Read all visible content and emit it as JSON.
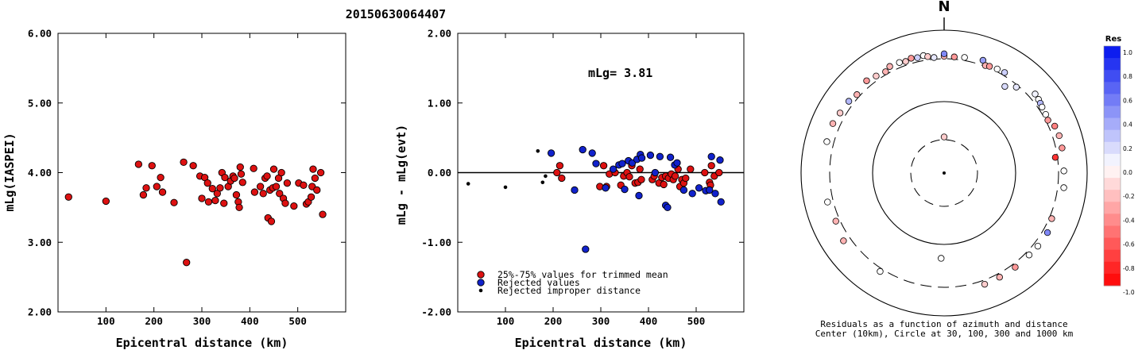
{
  "header": {
    "event_id": "20150630064407"
  },
  "compass": {
    "north_label": "N"
  },
  "chart_data": [
    {
      "type": "scatter",
      "name": "magnitude-vs-distance",
      "xlabel": "Epicentral distance (km)",
      "ylabel": "mLg(IASPEI)",
      "xlim": [
        0,
        600
      ],
      "ylim": [
        2.0,
        6.0
      ],
      "x_ticks": [
        100,
        200,
        300,
        400,
        500
      ],
      "x_tick_labels": [
        "100",
        "200",
        "300",
        "400",
        "500"
      ],
      "y_ticks": [
        2.0,
        3.0,
        4.0,
        5.0,
        6.0
      ],
      "y_tick_labels": [
        "2.00",
        "3.00",
        "4.00",
        "5.00",
        "6.00"
      ],
      "point_color": "#dd1111",
      "points": [
        [
          22,
          3.65
        ],
        [
          100,
          3.59
        ],
        [
          168,
          4.12
        ],
        [
          178,
          3.68
        ],
        [
          184,
          3.78
        ],
        [
          196,
          4.1
        ],
        [
          206,
          3.8
        ],
        [
          214,
          3.93
        ],
        [
          218,
          3.72
        ],
        [
          242,
          3.57
        ],
        [
          262,
          4.15
        ],
        [
          268,
          2.71
        ],
        [
          282,
          4.1
        ],
        [
          296,
          3.95
        ],
        [
          300,
          3.63
        ],
        [
          306,
          3.93
        ],
        [
          312,
          3.85
        ],
        [
          314,
          3.58
        ],
        [
          322,
          3.77
        ],
        [
          328,
          3.6
        ],
        [
          332,
          3.7
        ],
        [
          338,
          3.78
        ],
        [
          342,
          4.0
        ],
        [
          346,
          3.56
        ],
        [
          348,
          3.93
        ],
        [
          355,
          3.8
        ],
        [
          360,
          3.88
        ],
        [
          365,
          3.95
        ],
        [
          368,
          3.92
        ],
        [
          372,
          3.68
        ],
        [
          376,
          3.58
        ],
        [
          378,
          3.5
        ],
        [
          380,
          4.08
        ],
        [
          382,
          3.98
        ],
        [
          385,
          3.86
        ],
        [
          408,
          4.06
        ],
        [
          410,
          3.72
        ],
        [
          422,
          3.8
        ],
        [
          428,
          3.7
        ],
        [
          432,
          3.92
        ],
        [
          436,
          3.95
        ],
        [
          438,
          3.35
        ],
        [
          442,
          3.75
        ],
        [
          445,
          3.3
        ],
        [
          448,
          3.78
        ],
        [
          450,
          4.05
        ],
        [
          455,
          3.8
        ],
        [
          460,
          3.92
        ],
        [
          462,
          3.7
        ],
        [
          466,
          4.0
        ],
        [
          470,
          3.63
        ],
        [
          474,
          3.56
        ],
        [
          478,
          3.85
        ],
        [
          492,
          3.52
        ],
        [
          502,
          3.85
        ],
        [
          512,
          3.82
        ],
        [
          518,
          3.55
        ],
        [
          522,
          3.58
        ],
        [
          528,
          3.65
        ],
        [
          530,
          3.8
        ],
        [
          532,
          4.05
        ],
        [
          536,
          3.92
        ],
        [
          540,
          3.75
        ],
        [
          548,
          4.0
        ],
        [
          552,
          3.4
        ]
      ]
    },
    {
      "type": "scatter",
      "name": "residual-vs-distance",
      "xlabel": "Epicentral distance (km)",
      "ylabel": "mLg - mLg(evt)",
      "xlim": [
        0,
        600
      ],
      "ylim": [
        -2.0,
        2.0
      ],
      "x_ticks": [
        100,
        200,
        300,
        400,
        500
      ],
      "x_tick_labels": [
        "100",
        "200",
        "300",
        "400",
        "500"
      ],
      "y_ticks": [
        -2.0,
        -1.0,
        0.0,
        1.0,
        2.0
      ],
      "y_tick_labels": [
        "-2.00",
        "-1.00",
        "0.00",
        "1.00",
        "2.00"
      ],
      "annotation": "mLg= 3.81",
      "zero_line": 0.0,
      "legend": [
        {
          "label": "25%-75% values for trimmed mean",
          "color": "#dd1111",
          "marker": "circle"
        },
        {
          "label": "Rejected values",
          "color": "#1122cc",
          "marker": "circle"
        },
        {
          "label": "Rejected improper distance",
          "color": "#000000",
          "marker": "dot"
        }
      ],
      "series": [
        {
          "name": "25%-75% values for trimmed mean",
          "color": "#dd1111",
          "points": [
            [
              208,
              0.0
            ],
            [
              214,
              0.1
            ],
            [
              218,
              -0.08
            ],
            [
              298,
              -0.2
            ],
            [
              306,
              0.1
            ],
            [
              312,
              -0.2
            ],
            [
              318,
              -0.02
            ],
            [
              330,
              0.0
            ],
            [
              342,
              -0.18
            ],
            [
              348,
              -0.05
            ],
            [
              355,
              0.0
            ],
            [
              360,
              -0.06
            ],
            [
              365,
              0.1
            ],
            [
              372,
              -0.15
            ],
            [
              378,
              -0.14
            ],
            [
              382,
              0.05
            ],
            [
              385,
              -0.1
            ],
            [
              408,
              -0.1
            ],
            [
              412,
              -0.05
            ],
            [
              422,
              -0.15
            ],
            [
              428,
              -0.07
            ],
            [
              432,
              -0.17
            ],
            [
              436,
              -0.05
            ],
            [
              442,
              -0.08
            ],
            [
              448,
              -0.02
            ],
            [
              452,
              -0.1
            ],
            [
              456,
              -0.05
            ],
            [
              462,
              0.05
            ],
            [
              466,
              -0.2
            ],
            [
              470,
              -0.1
            ],
            [
              474,
              -0.15
            ],
            [
              478,
              -0.08
            ],
            [
              488,
              0.05
            ],
            [
              518,
              0.0
            ],
            [
              528,
              -0.14
            ],
            [
              530,
              -0.18
            ],
            [
              532,
              0.1
            ],
            [
              538,
              -0.05
            ],
            [
              548,
              0.0
            ]
          ]
        },
        {
          "name": "Rejected values",
          "color": "#1122cc",
          "points": [
            [
              196,
              0.28
            ],
            [
              245,
              -0.25
            ],
            [
              262,
              0.33
            ],
            [
              268,
              -1.1
            ],
            [
              282,
              0.28
            ],
            [
              290,
              0.13
            ],
            [
              310,
              -0.22
            ],
            [
              326,
              0.05
            ],
            [
              338,
              0.11
            ],
            [
              345,
              0.13
            ],
            [
              350,
              -0.24
            ],
            [
              358,
              0.17
            ],
            [
              366,
              0.14
            ],
            [
              376,
              0.19
            ],
            [
              380,
              -0.33
            ],
            [
              383,
              0.26
            ],
            [
              386,
              0.21
            ],
            [
              404,
              0.25
            ],
            [
              414,
              0.0
            ],
            [
              424,
              0.23
            ],
            [
              436,
              -0.47
            ],
            [
              440,
              -0.5
            ],
            [
              446,
              0.22
            ],
            [
              455,
              0.11
            ],
            [
              460,
              0.14
            ],
            [
              474,
              -0.25
            ],
            [
              492,
              -0.3
            ],
            [
              506,
              -0.22
            ],
            [
              520,
              -0.26
            ],
            [
              528,
              -0.25
            ],
            [
              532,
              0.23
            ],
            [
              540,
              -0.3
            ],
            [
              550,
              0.18
            ],
            [
              552,
              -0.42
            ]
          ]
        },
        {
          "name": "Rejected improper distance",
          "color": "#000000",
          "points": [
            [
              22,
              -0.16
            ],
            [
              100,
              -0.21
            ],
            [
              168,
              0.31
            ],
            [
              178,
              -0.14
            ],
            [
              184,
              -0.05
            ]
          ]
        }
      ]
    },
    {
      "type": "polar-scatter",
      "name": "residual-azimuth-distance",
      "caption_line1": "Residuals as a function of azimuth and distance",
      "caption_line2": "Center (10km), Circle at 30, 100, 300 and 1000 km",
      "rings_km": [
        30,
        100,
        300,
        1000
      ],
      "colorbar": {
        "title": "Res",
        "range": [
          -1.0,
          1.0
        ],
        "tick_values": [
          1.0,
          0.8,
          0.6,
          0.4,
          0.2,
          0.0,
          -0.2,
          -0.4,
          -0.6,
          -0.8,
          -1.0
        ],
        "tick_labels": [
          "1.0",
          "0.8",
          "0.6",
          "0.4",
          "0.2",
          "0.0",
          "-0.2",
          "-0.4",
          "-0.6",
          "-0.8",
          "-1.0"
        ],
        "positive_color": "#0011ee",
        "negative_color": "#ff0000",
        "zero_color": "#ffffff"
      },
      "stations": [
        {
          "az": 0,
          "dist": 35,
          "res": -0.2
        },
        {
          "az": 0,
          "dist": 360,
          "res": -0.3
        },
        {
          "az": 0,
          "dist": 420,
          "res": 0.5
        },
        {
          "az": 5,
          "dist": 355,
          "res": -0.4
        },
        {
          "az": 10,
          "dist": 375,
          "res": 0.0
        },
        {
          "az": 19,
          "dist": 420,
          "res": 0.4
        },
        {
          "az": 21,
          "dist": 320,
          "res": -0.3
        },
        {
          "az": 23,
          "dist": 340,
          "res": -0.4
        },
        {
          "az": 27,
          "dist": 360,
          "res": 0.0
        },
        {
          "az": 31,
          "dist": 372,
          "res": 0.2
        },
        {
          "az": 35,
          "dist": 260,
          "res": 0.15
        },
        {
          "az": 40,
          "dist": 290,
          "res": 0.1
        },
        {
          "az": 49,
          "dist": 450,
          "res": 0.05
        },
        {
          "az": 52,
          "dist": 430,
          "res": 0.0
        },
        {
          "az": 54,
          "dist": 410,
          "res": 0.3
        },
        {
          "az": 56,
          "dist": 390,
          "res": 0.0
        },
        {
          "az": 60,
          "dist": 370,
          "res": 0.0
        },
        {
          "az": 63,
          "dist": 350,
          "res": -0.4
        },
        {
          "az": 67,
          "dist": 440,
          "res": -0.5
        },
        {
          "az": 72,
          "dist": 460,
          "res": -0.3
        },
        {
          "az": 78,
          "dist": 450,
          "res": -0.4
        },
        {
          "az": 82,
          "dist": 290,
          "res": -0.8
        },
        {
          "az": 89,
          "dist": 430,
          "res": 0.0
        },
        {
          "az": 97,
          "dist": 450,
          "res": 0.0
        },
        {
          "az": 113,
          "dist": 360,
          "res": -0.3
        },
        {
          "az": 120,
          "dist": 420,
          "res": 0.5
        },
        {
          "az": 128,
          "dist": 410,
          "res": 0.0
        },
        {
          "az": 134,
          "dist": 390,
          "res": 0.0
        },
        {
          "az": 143,
          "dist": 390,
          "res": -0.4
        },
        {
          "az": 152,
          "dist": 390,
          "res": -0.3
        },
        {
          "az": 160,
          "dist": 400,
          "res": -0.2
        },
        {
          "az": 182,
          "dist": 165,
          "res": 0.0
        },
        {
          "az": 213,
          "dist": 375,
          "res": 0.0
        },
        {
          "az": 236,
          "dist": 470,
          "res": -0.3
        },
        {
          "az": 246,
          "dist": 400,
          "res": -0.3
        },
        {
          "az": 256,
          "dist": 440,
          "res": 0.0
        },
        {
          "az": 285,
          "dist": 470,
          "res": 0.0
        },
        {
          "az": 294,
          "dist": 480,
          "res": -0.3
        },
        {
          "az": 300,
          "dist": 440,
          "res": -0.2
        },
        {
          "az": 307,
          "dist": 420,
          "res": 0.3
        },
        {
          "az": 312,
          "dist": 370,
          "res": -0.3
        },
        {
          "az": 320,
          "dist": 450,
          "res": -0.4
        },
        {
          "az": 325,
          "dist": 400,
          "res": -0.2
        },
        {
          "az": 330,
          "dist": 365,
          "res": -0.3
        },
        {
          "az": 333,
          "dist": 430,
          "res": -0.3
        },
        {
          "az": 338,
          "dist": 420,
          "res": 0.0
        },
        {
          "az": 341,
          "dist": 390,
          "res": -0.2
        },
        {
          "az": 344,
          "dist": 425,
          "res": -0.4
        },
        {
          "az": 347,
          "dist": 400,
          "res": 0.2
        },
        {
          "az": 350,
          "dist": 420,
          "res": 0.0
        },
        {
          "az": 352,
          "dist": 380,
          "res": -0.2
        },
        {
          "az": 355,
          "dist": 340,
          "res": 0.1
        }
      ]
    }
  ]
}
